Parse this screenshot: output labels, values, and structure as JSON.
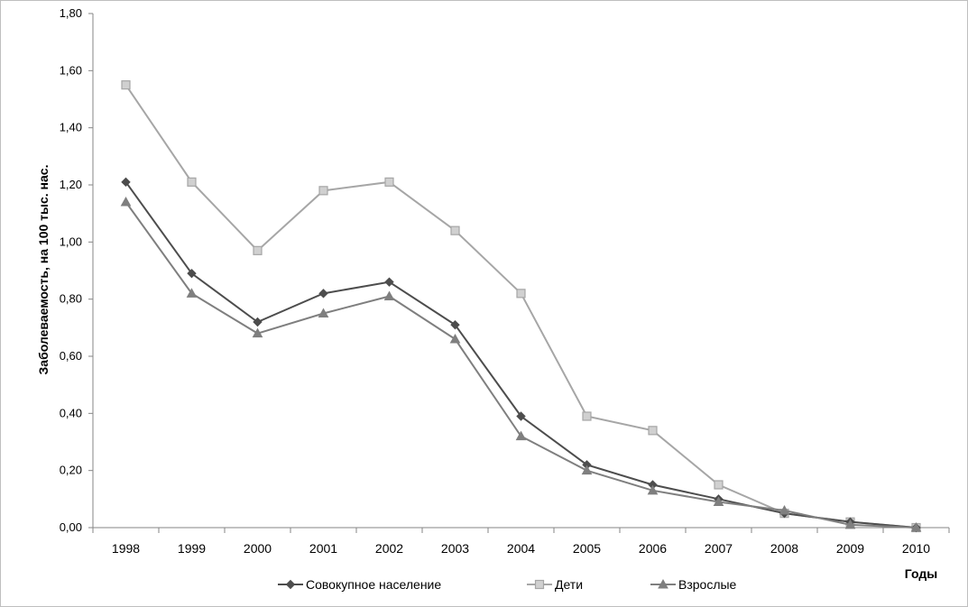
{
  "chart_data": {
    "type": "line",
    "xlabel": "Годы",
    "ylabel": "Заболеваемость, на 100 тыс. нас.",
    "ylim": [
      0,
      1.8
    ],
    "ytick_step": 0.2,
    "y_tick_labels": [
      "0,00",
      "0,20",
      "0,40",
      "0,60",
      "0,80",
      "1,00",
      "1,20",
      "1,40",
      "1,60",
      "1,80"
    ],
    "categories": [
      "1998",
      "1999",
      "2000",
      "2001",
      "2002",
      "2003",
      "2004",
      "2005",
      "2006",
      "2007",
      "2008",
      "2009",
      "2010"
    ],
    "grid": false,
    "legend_position": "bottom",
    "series": [
      {
        "name": "Совокупное население",
        "color": "#4d4d4d",
        "marker": "diamond",
        "values": [
          1.21,
          0.89,
          0.72,
          0.82,
          0.86,
          0.71,
          0.39,
          0.22,
          0.15,
          0.1,
          0.05,
          0.02,
          0.0
        ]
      },
      {
        "name": "Дети",
        "color": "#a6a6a6",
        "marker": "square",
        "values": [
          1.55,
          1.21,
          0.97,
          1.18,
          1.21,
          1.04,
          0.82,
          0.39,
          0.34,
          0.15,
          0.05,
          0.02,
          0.0
        ]
      },
      {
        "name": "Взрослые",
        "color": "#7f7f7f",
        "marker": "triangle",
        "values": [
          1.14,
          0.82,
          0.68,
          0.75,
          0.81,
          0.66,
          0.32,
          0.2,
          0.13,
          0.09,
          0.06,
          0.01,
          0.0
        ]
      }
    ]
  }
}
